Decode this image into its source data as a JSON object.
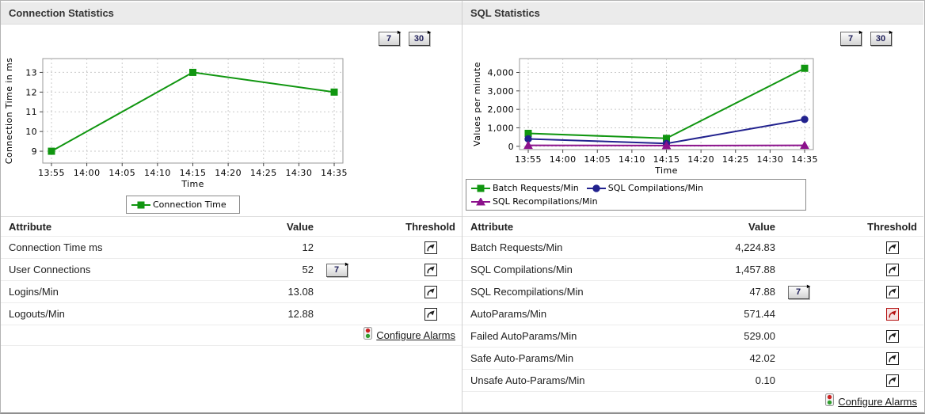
{
  "colors": {
    "series_green": "#109610",
    "series_navy": "#22228e",
    "series_purple": "#8c118c",
    "alarm_red": "#b51212"
  },
  "panels": [
    {
      "title": "Connection Statistics",
      "period_buttons": [
        "7",
        "30"
      ],
      "table": {
        "headers": {
          "attribute": "Attribute",
          "value": "Value",
          "threshold": "Threshold"
        },
        "rows": [
          {
            "attribute": "Connection Time ms",
            "value": "12",
            "period_button": null,
            "threshold_alarm": false
          },
          {
            "attribute": "User Connections",
            "value": "52",
            "period_button": "7",
            "threshold_alarm": false
          },
          {
            "attribute": "Logins/Min",
            "value": "13.08",
            "period_button": null,
            "threshold_alarm": false
          },
          {
            "attribute": "Logouts/Min",
            "value": "12.88",
            "period_button": null,
            "threshold_alarm": false
          }
        ]
      },
      "configure_alarms_label": "Configure Alarms"
    },
    {
      "title": "SQL Statistics",
      "period_buttons": [
        "7",
        "30"
      ],
      "table": {
        "headers": {
          "attribute": "Attribute",
          "value": "Value",
          "threshold": "Threshold"
        },
        "rows": [
          {
            "attribute": "Batch Requests/Min",
            "value": "4,224.83",
            "period_button": null,
            "threshold_alarm": false
          },
          {
            "attribute": "SQL Compilations/Min",
            "value": "1,457.88",
            "period_button": null,
            "threshold_alarm": false
          },
          {
            "attribute": "SQL Recompilations/Min",
            "value": "47.88",
            "period_button": "7",
            "threshold_alarm": false
          },
          {
            "attribute": "AutoParams/Min",
            "value": "571.44",
            "period_button": null,
            "threshold_alarm": true
          },
          {
            "attribute": "Failed AutoParams/Min",
            "value": "529.00",
            "period_button": null,
            "threshold_alarm": false
          },
          {
            "attribute": "Safe Auto-Params/Min",
            "value": "42.02",
            "period_button": null,
            "threshold_alarm": false
          },
          {
            "attribute": "Unsafe Auto-Params/Min",
            "value": "0.10",
            "period_button": null,
            "threshold_alarm": false
          }
        ]
      },
      "configure_alarms_label": "Configure Alarms"
    }
  ],
  "chart_data": [
    {
      "type": "line",
      "title": "Connection Statistics",
      "xlabel": "Time",
      "ylabel": "Connection Time in ms",
      "categories": [
        "13:55",
        "14:00",
        "14:05",
        "14:10",
        "14:15",
        "14:20",
        "14:25",
        "14:30",
        "14:35"
      ],
      "ylim": [
        8.4,
        13.7
      ],
      "yticks": [
        9,
        10,
        11,
        12,
        13
      ],
      "ytick_labels": [
        "9",
        "10",
        "11",
        "12",
        "13"
      ],
      "grid": true,
      "legend_position": "bottom-left",
      "series": [
        {
          "name": "Connection Time",
          "color": "#109610",
          "marker": "square",
          "values": [
            9,
            null,
            null,
            null,
            13,
            null,
            null,
            null,
            12
          ]
        }
      ]
    },
    {
      "type": "line",
      "title": "SQL Statistics",
      "xlabel": "Time",
      "ylabel": "Values per minute",
      "categories": [
        "13:55",
        "14:00",
        "14:05",
        "14:10",
        "14:15",
        "14:20",
        "14:25",
        "14:30",
        "14:35"
      ],
      "ylim": [
        -180,
        4750
      ],
      "yticks": [
        0,
        1000,
        2000,
        3000,
        4000
      ],
      "ytick_labels": [
        "0",
        "1,000",
        "2,000",
        "3,000",
        "4,000"
      ],
      "grid": true,
      "legend_position": "bottom-left",
      "series": [
        {
          "name": "Batch Requests/Min",
          "color": "#109610",
          "marker": "square",
          "values": [
            700,
            null,
            null,
            null,
            430,
            null,
            null,
            null,
            4225
          ]
        },
        {
          "name": "SQL Compilations/Min",
          "color": "#22228e",
          "marker": "circle",
          "values": [
            400,
            null,
            null,
            null,
            150,
            null,
            null,
            null,
            1458
          ]
        },
        {
          "name": "SQL Recompilations/Min",
          "color": "#8c118c",
          "marker": "triangle",
          "values": [
            50,
            null,
            null,
            null,
            40,
            null,
            null,
            null,
            48
          ]
        }
      ]
    }
  ]
}
